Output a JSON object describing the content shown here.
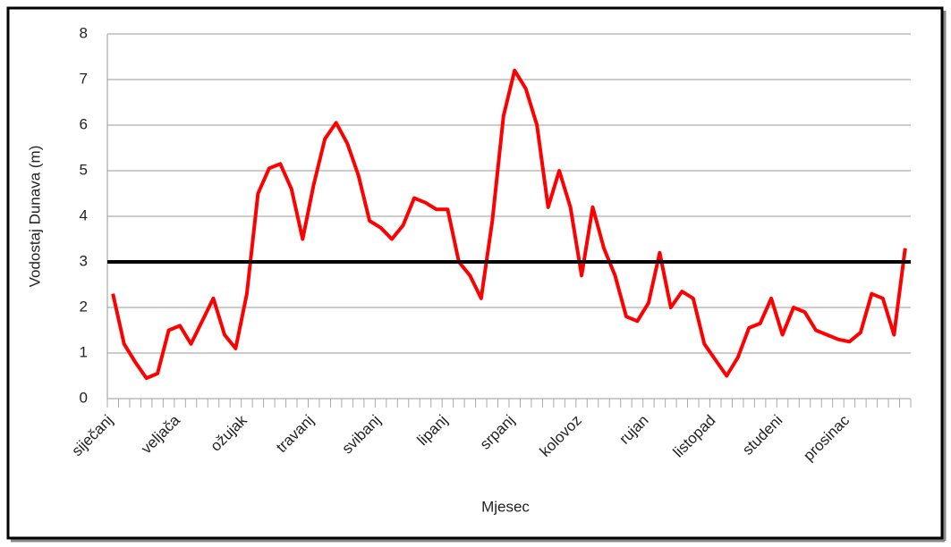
{
  "chart_data": {
    "type": "line",
    "y_label": "Vodostaj Dunava (m)",
    "x_label": "Mjesec",
    "categories": [
      "siječanj",
      null,
      null,
      null,
      null,
      null,
      "veljača",
      null,
      null,
      null,
      null,
      null,
      "ožujak",
      null,
      null,
      null,
      null,
      null,
      "travanj",
      null,
      null,
      null,
      null,
      null,
      "svibanj",
      null,
      null,
      null,
      null,
      null,
      "lipanj",
      null,
      null,
      null,
      null,
      null,
      "srpanj",
      null,
      null,
      null,
      null,
      null,
      "kolovoz",
      null,
      null,
      null,
      null,
      null,
      "rujan",
      null,
      null,
      null,
      null,
      null,
      "listopad",
      null,
      null,
      null,
      null,
      null,
      "studeni",
      null,
      null,
      null,
      null,
      null,
      "prosinac",
      null,
      null,
      null,
      null,
      null
    ],
    "series": [
      {
        "color": "#ff0000",
        "values": [
          2.3,
          1.2,
          0.8,
          0.45,
          0.55,
          1.5,
          1.6,
          1.2,
          1.7,
          2.2,
          1.4,
          1.1,
          2.3,
          4.5,
          5.05,
          5.15,
          4.6,
          3.5,
          4.7,
          5.7,
          6.05,
          5.6,
          4.9,
          3.9,
          3.75,
          3.5,
          3.8,
          4.4,
          4.3,
          4.15,
          4.15,
          3.0,
          2.7,
          2.2,
          3.9,
          6.2,
          7.2,
          6.8,
          6.0,
          4.2,
          5.0,
          4.2,
          2.7,
          4.2,
          3.3,
          2.7,
          1.8,
          1.7,
          2.1,
          3.2,
          2.0,
          2.35,
          2.2,
          1.2,
          0.85,
          0.5,
          0.9,
          1.55,
          1.65,
          2.2,
          1.4,
          2.0,
          1.9,
          1.5,
          1.4,
          1.3,
          1.25,
          1.45,
          2.3,
          2.2,
          1.4,
          3.3
        ]
      }
    ],
    "hline": {
      "value": 3,
      "color": "#000000"
    },
    "ylim": [
      0,
      8
    ],
    "yticks": [
      0,
      1,
      2,
      3,
      4,
      5,
      6,
      7,
      8
    ],
    "grid": true
  }
}
